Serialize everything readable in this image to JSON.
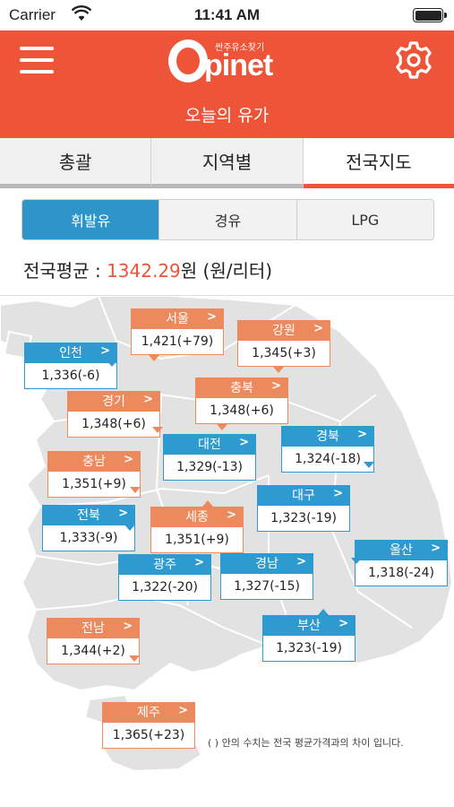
{
  "status_bar": {
    "carrier": "Carrier",
    "time": "11:41 AM"
  },
  "header": {
    "logo_text": "pinet",
    "logo_sub": "싼주유소찾기",
    "title": "오늘의 유가",
    "menu_icon": "hamburger-menu-icon",
    "settings_icon": "gear-icon"
  },
  "tabs": [
    {
      "label": "총괄",
      "active": false
    },
    {
      "label": "지역별",
      "active": false
    },
    {
      "label": "전국지도",
      "active": true
    }
  ],
  "fuel_types": [
    {
      "label": "휘발유",
      "active": true
    },
    {
      "label": "경유",
      "active": false
    },
    {
      "label": "LPG",
      "active": false
    }
  ],
  "average": {
    "prefix": "전국평균 : ",
    "value": "1342.29",
    "suffix": "원 (원/리터)"
  },
  "regions": [
    {
      "name": "서울",
      "price": "1,421(+79)",
      "color": "orange"
    },
    {
      "name": "강원",
      "price": "1,345(+3)",
      "color": "orange"
    },
    {
      "name": "인천",
      "price": "1,336(-6)",
      "color": "blue"
    },
    {
      "name": "경기",
      "price": "1,348(+6)",
      "color": "orange"
    },
    {
      "name": "충북",
      "price": "1,348(+6)",
      "color": "orange"
    },
    {
      "name": "경북",
      "price": "1,324(-18)",
      "color": "blue"
    },
    {
      "name": "대전",
      "price": "1,329(-13)",
      "color": "blue"
    },
    {
      "name": "충남",
      "price": "1,351(+9)",
      "color": "orange"
    },
    {
      "name": "대구",
      "price": "1,323(-19)",
      "color": "blue"
    },
    {
      "name": "전북",
      "price": "1,333(-9)",
      "color": "blue"
    },
    {
      "name": "세종",
      "price": "1,351(+9)",
      "color": "orange"
    },
    {
      "name": "울산",
      "price": "1,318(-24)",
      "color": "blue"
    },
    {
      "name": "광주",
      "price": "1,322(-20)",
      "color": "blue"
    },
    {
      "name": "경남",
      "price": "1,327(-15)",
      "color": "blue"
    },
    {
      "name": "부산",
      "price": "1,323(-19)",
      "color": "blue"
    },
    {
      "name": "전남",
      "price": "1,344(+2)",
      "color": "orange"
    },
    {
      "name": "제주",
      "price": "1,365(+23)",
      "color": "orange"
    }
  ],
  "footnote": "( ) 안의 수치는 전국 평균가격과의 차이 입니다.",
  "colors": {
    "header": "#ee5538",
    "accent_blue": "#2e9bd0",
    "accent_orange": "#ec8a5e"
  }
}
